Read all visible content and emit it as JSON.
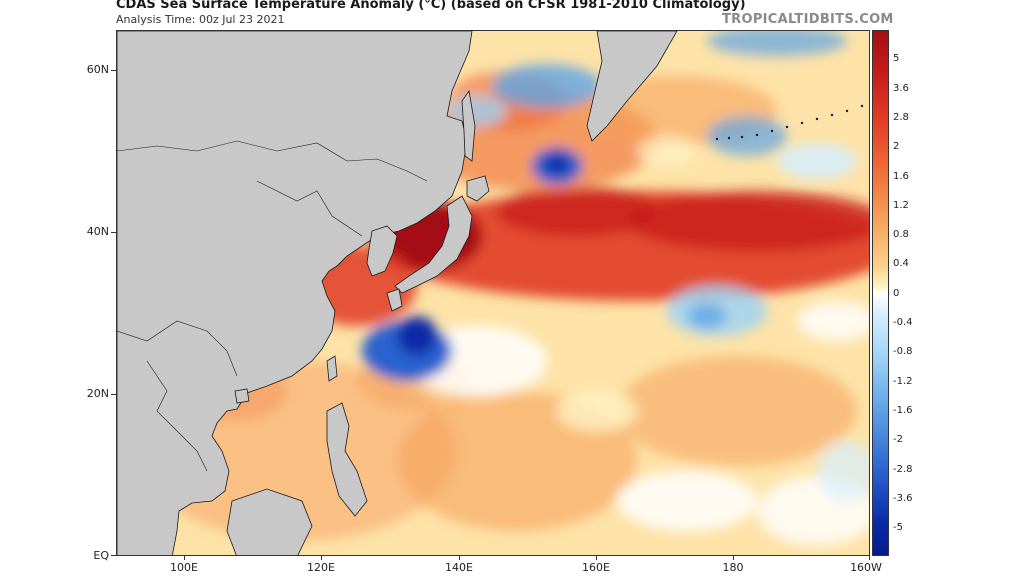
{
  "header": {
    "title": "CDAS Sea Surface Temperature Anomaly (°C) (based on CFSR 1981-2010 Climatology)",
    "analysis_time": "Analysis Time: 00z Jul 23 2021",
    "watermark": "TROPICALTIDBITS.COM"
  },
  "map": {
    "projection_extent": {
      "lon_min": 90,
      "lon_max": 200,
      "lat_min": 0,
      "lat_max": 65
    },
    "y_axis": [
      {
        "lat": 60,
        "label": "60N"
      },
      {
        "lat": 40,
        "label": "40N"
      },
      {
        "lat": 20,
        "label": "20N"
      },
      {
        "lat": 0,
        "label": "EQ"
      }
    ],
    "x_axis": [
      {
        "lon": 100,
        "label": "100E"
      },
      {
        "lon": 120,
        "label": "120E"
      },
      {
        "lon": 140,
        "label": "140E"
      },
      {
        "lon": 160,
        "label": "160E"
      },
      {
        "lon": 180,
        "label": "180"
      },
      {
        "lon": 200,
        "label": "160W"
      }
    ],
    "colors": {
      "land": "#c8c8c8",
      "coast": "#1a1a1a",
      "ocean_base": "#fde3a8",
      "strong_warm": "#a50f15",
      "warm": "#e03a24",
      "mild_warm": "#f6a15a",
      "cool": "#9fd3f5",
      "strong_cool": "#0a2aa8"
    }
  },
  "colorbar": {
    "labels": [
      "5",
      "3.6",
      "2.8",
      "2",
      "1.6",
      "1.2",
      "0.8",
      "0.4",
      "0",
      "-0.4",
      "-0.8",
      "-1.2",
      "-1.6",
      "-2",
      "-2.8",
      "-3.6",
      "-5"
    ]
  }
}
